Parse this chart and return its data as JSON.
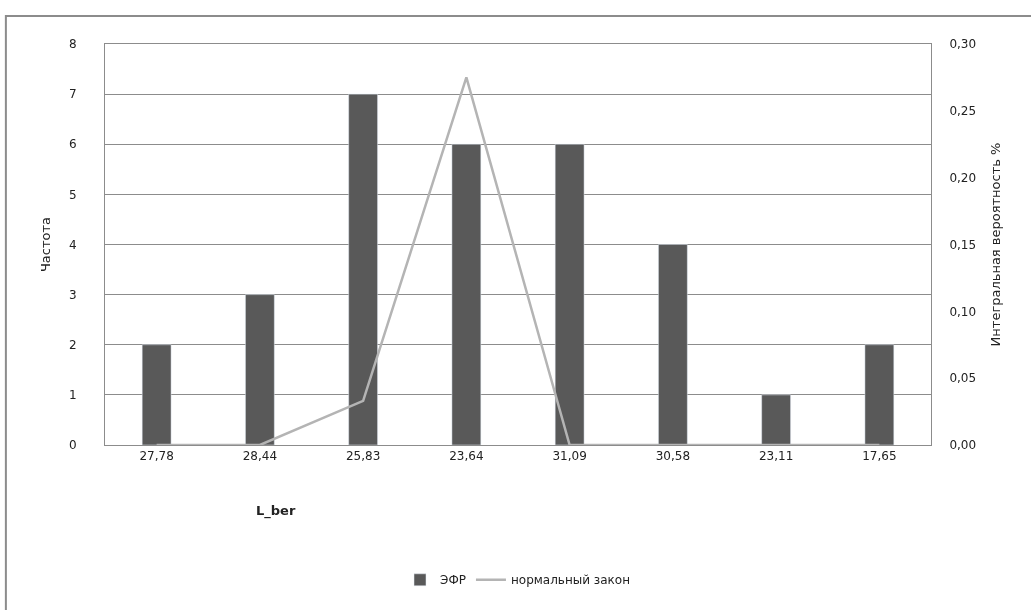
{
  "chart_data": {
    "type": "bar",
    "categories": [
      "27,78",
      "28,44",
      "25,83",
      "23,64",
      "31,09",
      "30,58",
      "23,11",
      "17,65"
    ],
    "series": [
      {
        "name": "ЭФР",
        "color": "#595959",
        "values": [
          2,
          3,
          7,
          6,
          6,
          4,
          1,
          2
        ]
      },
      {
        "name": "нормальный закон",
        "type": "line",
        "axis": "y2",
        "color": "#b4b4b4",
        "marker": "none",
        "values": [
          0,
          0,
          0.033,
          0.275,
          0,
          0,
          0,
          0
        ]
      }
    ],
    "xlabel": "L_ber",
    "ylabel": "Частота",
    "y2label": "Интегральная вероятность %",
    "ylim": [
      0,
      8
    ],
    "yticks": [
      0,
      1,
      2,
      3,
      4,
      5,
      6,
      7,
      8
    ],
    "y2lim": [
      0,
      0.3
    ],
    "y2ticks": [
      {
        "value": 0,
        "label": "0,00"
      },
      {
        "value": 0.05,
        "label": "0,05"
      },
      {
        "value": 0.1,
        "label": "0,10"
      },
      {
        "value": 0.15,
        "label": "0,15"
      },
      {
        "value": 0.2,
        "label": "0,20"
      },
      {
        "value": 0.25,
        "label": "0,25"
      },
      {
        "value": 0.3,
        "label": "0,30"
      }
    ],
    "grid": "y",
    "legend": "bottom"
  }
}
